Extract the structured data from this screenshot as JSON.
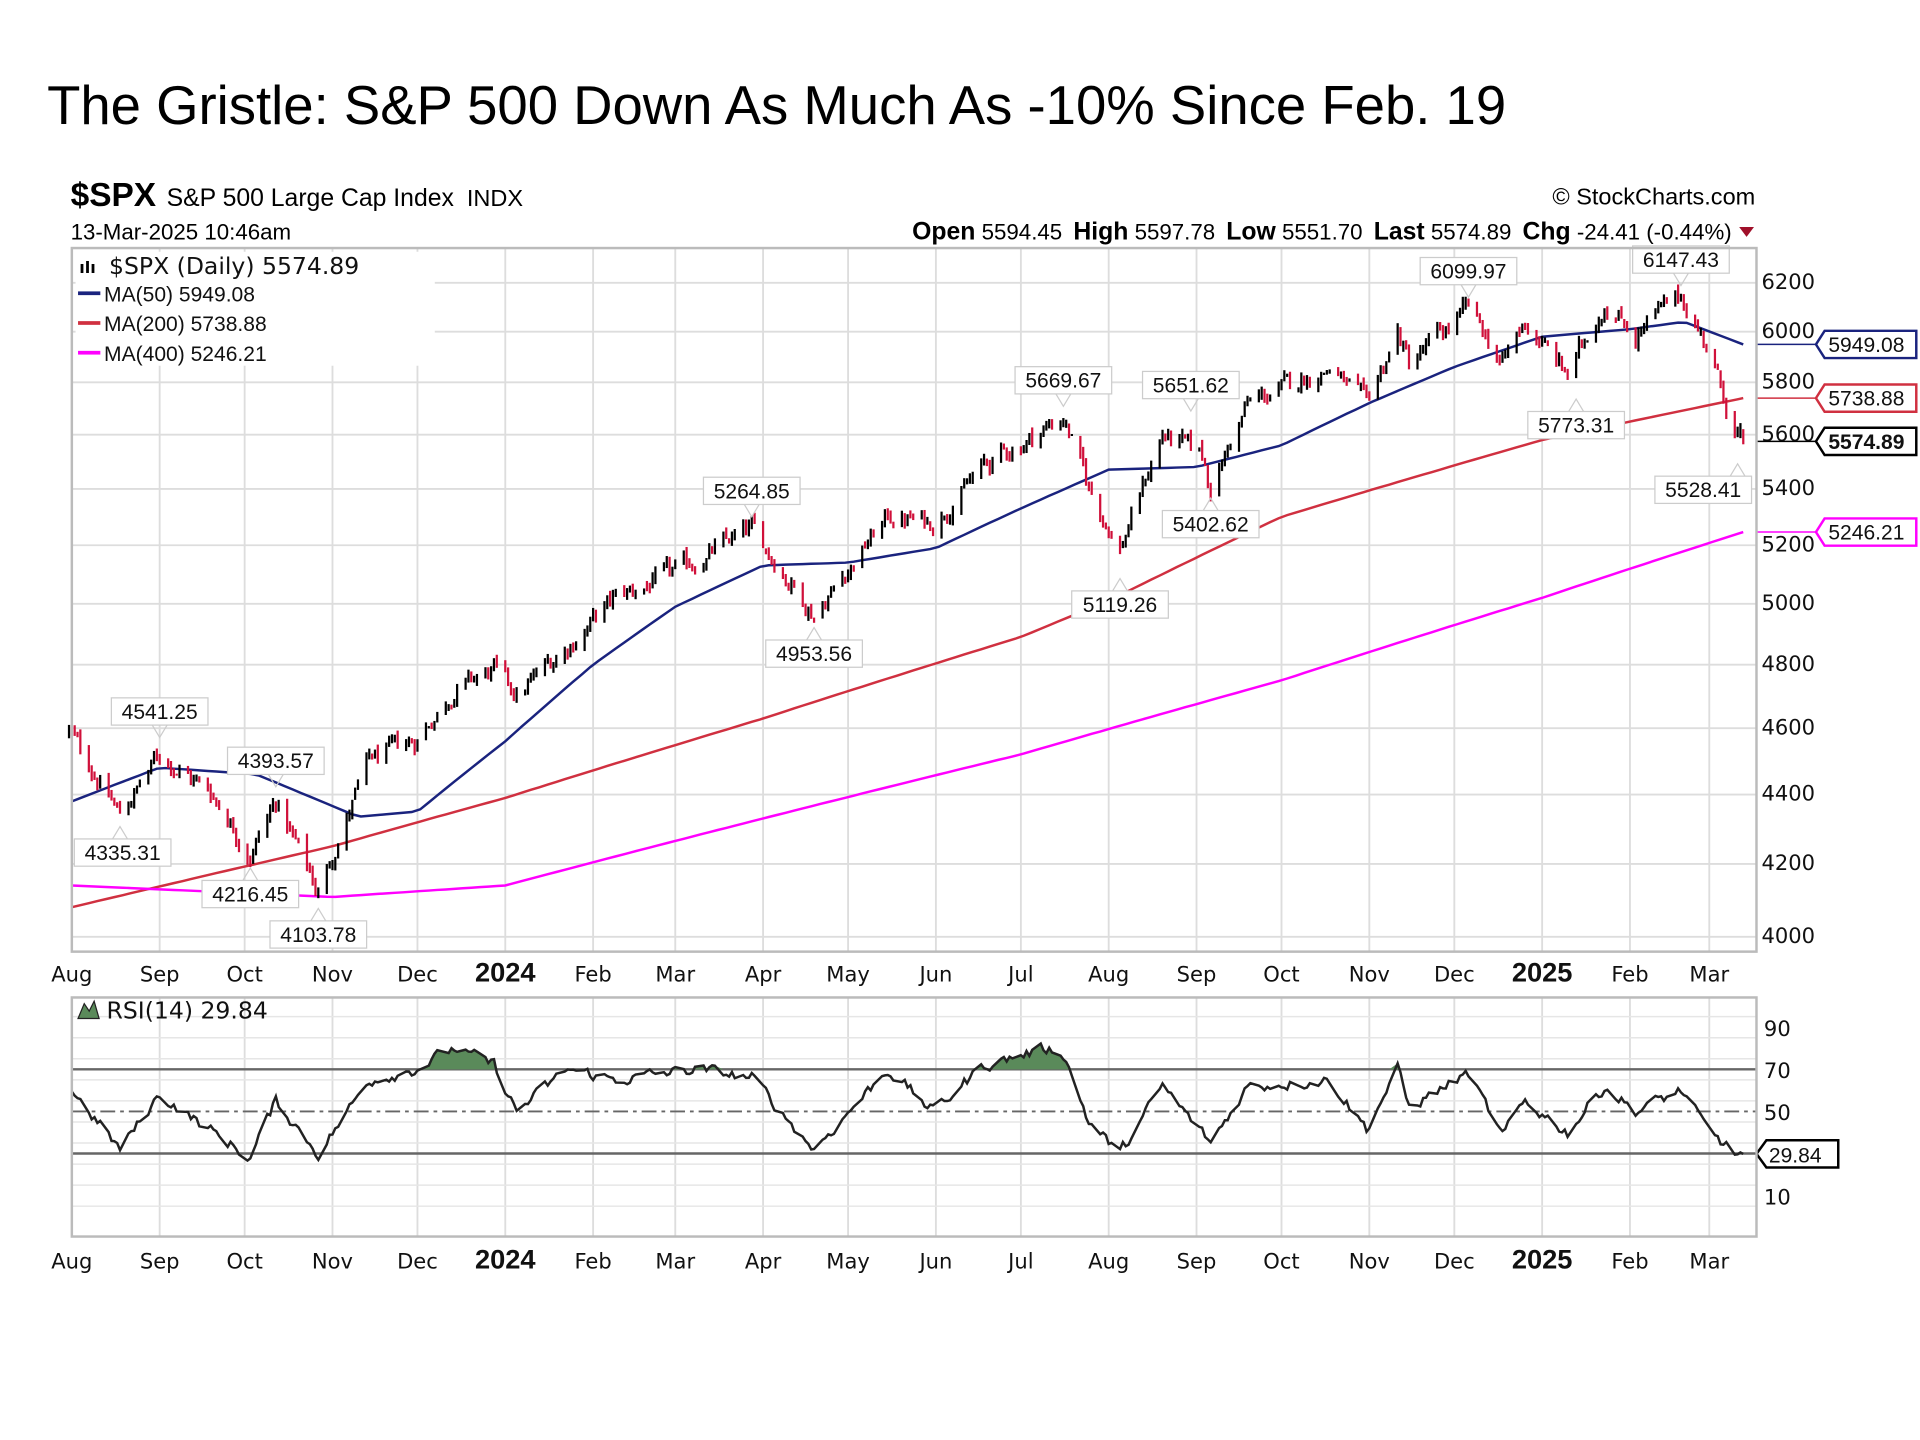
{
  "title": "The Gristle: S&P 500 Down As Much As -10% Since Feb. 19",
  "header": {
    "symbol": "$SPX",
    "name": "S&P 500 Large Cap Index",
    "exchange": "INDX",
    "datetime": "13-Mar-2025 10:46am",
    "copyright": "© StockCharts.com",
    "open_label": "Open",
    "open": "5594.45",
    "high_label": "High",
    "high": "5597.78",
    "low_label": "Low",
    "low": "5551.70",
    "last_label": "Last",
    "last": "5574.89",
    "chg_label": "Chg",
    "chg": "-24.41 (-0.44%)",
    "chg_direction": "down"
  },
  "legend": {
    "price": "$SPX (Daily) 5574.89",
    "ma50": "MA(50) 5949.08",
    "ma200": "MA(200) 5738.88",
    "ma400": "MA(400) 5246.21",
    "rsi": "RSI(14) 29.84"
  },
  "colors": {
    "up_bar": "#000000",
    "down_bar": "#d0103a",
    "ma50": "#1a237e",
    "ma200": "#d03040",
    "ma400": "#ff00ff",
    "rsi_line": "#222222",
    "rsi_overbought_fill": "#5a8a5a",
    "grid": "#dddddd"
  },
  "chart_data": [
    {
      "type": "line",
      "subtype": "ohlc-bars",
      "scale": "log",
      "ylim": [
        4000,
        6300
      ],
      "yticks": [
        "6200",
        "6000",
        "5800",
        "5600",
        "5400",
        "5200",
        "5000",
        "4800",
        "4600",
        "4400",
        "4200",
        "4000"
      ],
      "yticks_values": [
        6200,
        6000,
        5800,
        5600,
        5400,
        5200,
        5000,
        4800,
        4600,
        4400,
        4200,
        4000
      ],
      "xlim": [
        "2023-08-01",
        "2025-03-13"
      ],
      "xticks": [
        {
          "date": "2023-08-01",
          "label": "Aug"
        },
        {
          "date": "2023-09-01",
          "label": "Sep"
        },
        {
          "date": "2023-10-01",
          "label": "Oct"
        },
        {
          "date": "2023-11-01",
          "label": "Nov"
        },
        {
          "date": "2023-12-01",
          "label": "Dec"
        },
        {
          "date": "2024-01-01",
          "label": "2024",
          "bold": true
        },
        {
          "date": "2024-02-01",
          "label": "Feb"
        },
        {
          "date": "2024-03-01",
          "label": "Mar"
        },
        {
          "date": "2024-04-01",
          "label": "Apr"
        },
        {
          "date": "2024-05-01",
          "label": "May"
        },
        {
          "date": "2024-06-01",
          "label": "Jun"
        },
        {
          "date": "2024-07-01",
          "label": "Jul"
        },
        {
          "date": "2024-08-01",
          "label": "Aug"
        },
        {
          "date": "2024-09-01",
          "label": "Sep"
        },
        {
          "date": "2024-10-01",
          "label": "Oct"
        },
        {
          "date": "2024-11-01",
          "label": "Nov"
        },
        {
          "date": "2024-12-01",
          "label": "Dec"
        },
        {
          "date": "2025-01-01",
          "label": "2025",
          "bold": true
        },
        {
          "date": "2025-02-01",
          "label": "Feb"
        },
        {
          "date": "2025-03-01",
          "label": "Mar"
        }
      ],
      "grid": true,
      "series": [
        {
          "name": "$SPX (Daily)",
          "dates": [
            "2023-07-31",
            "2023-08-18",
            "2023-09-01",
            "2023-09-20",
            "2023-10-03",
            "2023-10-12",
            "2023-10-27",
            "2023-11-14",
            "2023-11-30",
            "2023-12-14",
            "2023-12-28",
            "2024-01-05",
            "2024-01-23",
            "2024-02-09",
            "2024-02-29",
            "2024-03-28",
            "2024-04-19",
            "2024-05-15",
            "2024-05-31",
            "2024-06-18",
            "2024-07-16",
            "2024-07-25",
            "2024-08-05",
            "2024-08-20",
            "2024-09-03",
            "2024-09-06",
            "2024-09-19",
            "2024-10-18",
            "2024-10-31",
            "2024-11-11",
            "2024-11-15",
            "2024-12-06",
            "2024-12-18",
            "2024-12-26",
            "2025-01-10",
            "2025-01-23",
            "2025-02-03",
            "2025-02-19",
            "2025-02-28",
            "2025-03-10",
            "2025-03-13"
          ],
          "values": [
            4590,
            4340,
            4520,
            4400,
            4230,
            4380,
            4120,
            4500,
            4560,
            4720,
            4780,
            4700,
            4860,
            5020,
            5100,
            5254,
            4967,
            5300,
            5280,
            5480,
            5667,
            5400,
            5186,
            5600,
            5520,
            5408,
            5713,
            5860,
            5705,
            6000,
            5870,
            6090,
            5872,
            6037,
            5827,
            6119,
            5994,
            6144,
            5954,
            5614,
            5575
          ]
        },
        {
          "name": "MA(50)",
          "dates": [
            "2023-08-01",
            "2023-09-01",
            "2023-10-05",
            "2023-11-10",
            "2023-12-01",
            "2024-01-01",
            "2024-02-01",
            "2024-03-01",
            "2024-04-01",
            "2024-05-01",
            "2024-06-01",
            "2024-07-01",
            "2024-08-01",
            "2024-09-01",
            "2024-10-01",
            "2024-11-01",
            "2024-12-01",
            "2025-01-01",
            "2025-02-01",
            "2025-02-20",
            "2025-03-13"
          ],
          "values": [
            4380,
            4480,
            4460,
            4335,
            4350,
            4560,
            4800,
            4990,
            5130,
            5140,
            5190,
            5330,
            5470,
            5480,
            5560,
            5720,
            5860,
            5980,
            6010,
            6040,
            5949.08
          ]
        },
        {
          "name": "MA(200)",
          "dates": [
            "2023-08-01",
            "2023-11-01",
            "2024-01-01",
            "2024-04-01",
            "2024-07-01",
            "2024-08-01",
            "2024-10-01",
            "2025-01-01",
            "2025-03-13"
          ],
          "values": [
            4080,
            4250,
            4390,
            4630,
            4890,
            5010,
            5300,
            5580,
            5738.88
          ]
        },
        {
          "name": "MA(400)",
          "dates": [
            "2023-08-01",
            "2023-11-01",
            "2024-01-01",
            "2024-04-01",
            "2024-07-01",
            "2024-10-01",
            "2025-01-01",
            "2025-03-13"
          ],
          "values": [
            4140,
            4108,
            4140,
            4330,
            4520,
            4750,
            5020,
            5246.21
          ]
        }
      ],
      "annotations": [
        {
          "date": "2023-09-01",
          "value": 4541.25,
          "label": "4541.25",
          "pos": "above"
        },
        {
          "date": "2023-08-18",
          "value": 4335.31,
          "label": "4335.31",
          "pos": "below"
        },
        {
          "date": "2023-10-12",
          "value": 4393.57,
          "label": "4393.57",
          "pos": "above"
        },
        {
          "date": "2023-10-03",
          "value": 4216.45,
          "label": "4216.45",
          "pos": "below"
        },
        {
          "date": "2023-10-27",
          "value": 4103.78,
          "label": "4103.78",
          "pos": "below"
        },
        {
          "date": "2024-03-28",
          "value": 5264.85,
          "label": "5264.85",
          "pos": "above"
        },
        {
          "date": "2024-04-19",
          "value": 4953.56,
          "label": "4953.56",
          "pos": "below"
        },
        {
          "date": "2024-07-16",
          "value": 5669.67,
          "label": "5669.67",
          "pos": "above"
        },
        {
          "date": "2024-08-05",
          "value": 5119.26,
          "label": "5119.26",
          "pos": "below"
        },
        {
          "date": "2024-08-30",
          "value": 5651.62,
          "label": "5651.62",
          "pos": "above"
        },
        {
          "date": "2024-09-06",
          "value": 5402.62,
          "label": "5402.62",
          "pos": "below"
        },
        {
          "date": "2024-12-06",
          "value": 6099.97,
          "label": "6099.97",
          "pos": "above"
        },
        {
          "date": "2025-01-13",
          "value": 5773.31,
          "label": "5773.31",
          "pos": "below"
        },
        {
          "date": "2025-02-19",
          "value": 6147.43,
          "label": "6147.43",
          "pos": "above"
        },
        {
          "date": "2025-03-11",
          "value": 5528.41,
          "label": "5528.41",
          "pos": "below"
        }
      ],
      "value_tags": [
        {
          "label": "5949.08",
          "value": 5949.08,
          "color": "#1a237e"
        },
        {
          "label": "5738.88",
          "value": 5738.88,
          "color": "#d03040"
        },
        {
          "label": "5574.89",
          "value": 5574.89,
          "color": "#000000",
          "bold": true
        },
        {
          "label": "5246.21",
          "value": 5246.21,
          "color": "#ff00ff"
        }
      ]
    },
    {
      "type": "line",
      "name": "RSI(14)",
      "ylim": [
        0,
        100
      ],
      "yticks": [
        "90",
        "70",
        "50",
        "10"
      ],
      "yticks_values": [
        90,
        70,
        50,
        10
      ],
      "reference_lines": [
        70,
        50,
        30
      ],
      "dates": [
        "2023-08-01",
        "2023-08-18",
        "2023-09-01",
        "2023-09-20",
        "2023-10-03",
        "2023-10-12",
        "2023-10-27",
        "2023-11-14",
        "2023-11-30",
        "2023-12-14",
        "2023-12-28",
        "2024-01-05",
        "2024-01-23",
        "2024-02-09",
        "2024-03-08",
        "2024-03-28",
        "2024-04-19",
        "2024-05-15",
        "2024-05-31",
        "2024-06-18",
        "2024-07-10",
        "2024-07-16",
        "2024-07-25",
        "2024-08-05",
        "2024-08-20",
        "2024-09-06",
        "2024-09-19",
        "2024-10-18",
        "2024-10-31",
        "2024-11-11",
        "2024-11-15",
        "2024-12-06",
        "2024-12-18",
        "2024-12-26",
        "2025-01-10",
        "2025-01-23",
        "2025-02-03",
        "2025-02-19",
        "2025-02-28",
        "2025-03-10",
        "2025-03-13"
      ],
      "values": [
        60,
        32,
        58,
        40,
        28,
        55,
        30,
        65,
        70,
        80,
        72,
        50,
        70,
        65,
        70,
        66,
        32,
        70,
        50,
        72,
        80,
        78,
        45,
        30,
        62,
        35,
        62,
        65,
        42,
        70,
        52,
        68,
        38,
        55,
        40,
        62,
        50,
        60,
        42,
        30,
        29.84
      ],
      "last_tag": "29.84"
    }
  ]
}
